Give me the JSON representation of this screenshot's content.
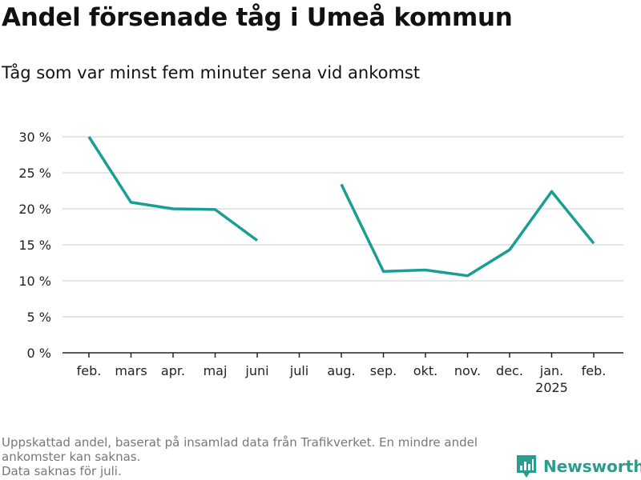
{
  "title": "Andel försenade tåg i Umeå kommun",
  "subtitle": "Tåg som var minst fem minuter sena vid ankomst",
  "footnote": {
    "line1": "Uppskattad andel, baserat på insamlad data från Trafikverket. En mindre andel ankomster kan saknas.",
    "line2": "Data saknas för juli."
  },
  "brand": {
    "name": "Newsworthy",
    "icon": "newsworthy-logo-icon"
  },
  "colors": {
    "line": "#1a9e92",
    "grid": "#dddddd",
    "axis": "#222222"
  },
  "chart_data": {
    "type": "line",
    "categories": [
      "feb.",
      "mars",
      "apr.",
      "maj",
      "juni",
      "juli",
      "aug.",
      "sep.",
      "okt.",
      "nov.",
      "dec.",
      "jan.",
      "feb."
    ],
    "category_sublabels": [
      "",
      "",
      "",
      "",
      "",
      "",
      "",
      "",
      "",
      "",
      "",
      "2025",
      ""
    ],
    "series": [
      {
        "values": [
          30.0,
          20.9,
          20.0,
          19.9,
          15.6,
          null,
          23.4,
          11.3,
          11.5,
          10.7,
          14.3,
          22.4,
          15.2
        ]
      }
    ],
    "ylim": [
      0,
      30
    ],
    "yticks": [
      0,
      5,
      10,
      15,
      20,
      25,
      30
    ],
    "ytick_labels": [
      "0 %",
      "5 %",
      "10 %",
      "15 %",
      "20 %",
      "25 %",
      "30 %"
    ],
    "grid": true,
    "xlabel": "",
    "ylabel": ""
  }
}
